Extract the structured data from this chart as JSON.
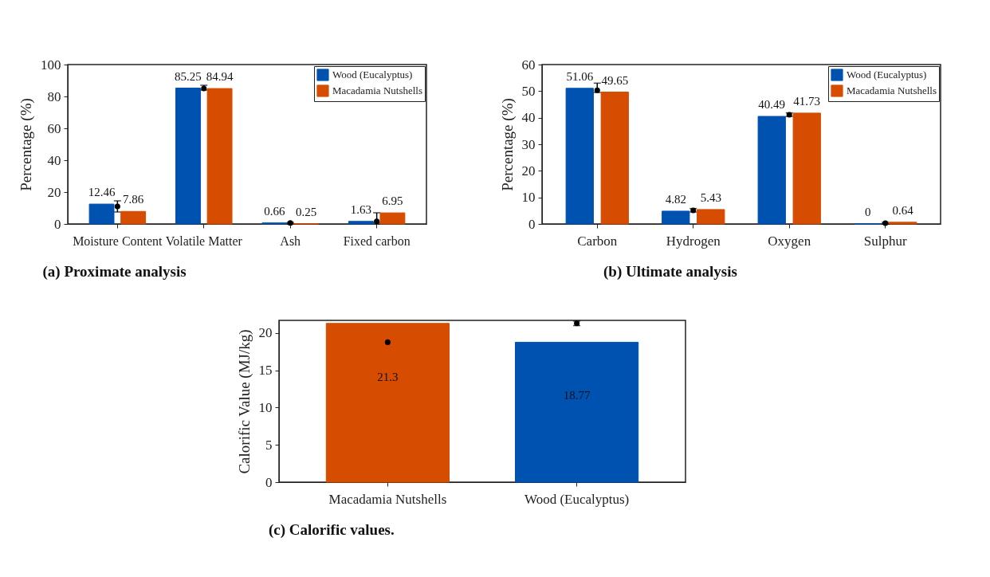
{
  "chart_data": [
    {
      "type": "bar",
      "title": "(a) Proximate analysis",
      "ylabel": "Percentage (%)",
      "categories": [
        "Moisture Content",
        "Volatile Matter",
        "Ash",
        "Fixed carbon"
      ],
      "series": [
        {
          "name": "Wood (Eucalyptus)",
          "color": "#0052b0",
          "values": [
            12.46,
            85.25,
            0.66,
            1.63
          ],
          "value_labels": [
            "12.46",
            "85.25",
            "0.66",
            "1.63"
          ]
        },
        {
          "name": "Macadamia Nutshells",
          "color": "#d64c00",
          "values": [
            7.86,
            84.94,
            0.25,
            6.95
          ],
          "value_labels": [
            "7.86",
            "84.94",
            "0.25",
            "6.95"
          ]
        },
        {
          "type": "scatter",
          "color": "#000000",
          "x": [
            "Moisture Content",
            "Volatile Matter",
            "Ash",
            "Fixed carbon"
          ],
          "values": [
            11,
            85,
            0.6,
            1.6
          ],
          "errors": [
            [
              7.5,
              14.5
            ],
            [
              84,
              87
            ],
            [
              0.2,
              1
            ],
            [
              1,
              7
            ]
          ]
        }
      ],
      "ylim": [
        0,
        100
      ],
      "yticks": [
        0,
        20,
        40,
        60,
        80,
        100
      ],
      "legend": "top right",
      "marker": "circle"
    },
    {
      "type": "bar",
      "title": "(b) Ultimate analysis",
      "ylabel": "Percentage (%)",
      "categories": [
        "Carbon",
        "Hydrogen",
        "Oxygen",
        "Sulphur"
      ],
      "series": [
        {
          "name": "Wood (Eucalyptus)",
          "color": "#0052b0",
          "values": [
            51.06,
            4.82,
            40.49,
            0
          ],
          "value_labels": [
            "51.06",
            "4.82",
            "40.49",
            "0"
          ]
        },
        {
          "name": "Macadamia Nutshells",
          "color": "#d64c00",
          "values": [
            49.65,
            5.43,
            41.73,
            0.64
          ],
          "value_labels": [
            "49.65",
            "5.43",
            "41.73",
            "0.64"
          ]
        },
        {
          "type": "scatter",
          "color": "#000000",
          "x": [
            "Carbon",
            "Hydrogen",
            "Oxygen",
            "Sulphur"
          ],
          "values": [
            50.3,
            5.1,
            41.1,
            0.3
          ],
          "errors": [
            [
              49.5,
              53
            ],
            [
              4.5,
              5.8
            ],
            [
              40.5,
              41.8
            ],
            [
              0,
              0.6
            ]
          ]
        }
      ],
      "ylim": [
        0,
        60
      ],
      "yticks": [
        0,
        10,
        20,
        30,
        40,
        50,
        60
      ],
      "legend": "top right",
      "marker": "circle"
    },
    {
      "type": "bar",
      "title": "(c) Calorific values.",
      "ylabel": "Calorific Value (MJ/kg)",
      "categories": [
        "Macadamia Nutshells",
        "Wood (Eucalyptus)"
      ],
      "series": [
        {
          "colors": [
            "#d64c00",
            "#0052b0"
          ],
          "values": [
            21.3,
            18.77
          ],
          "value_labels": [
            "21.3",
            "18.77"
          ]
        },
        {
          "type": "scatter",
          "color": "#000000",
          "x": [
            "Macadamia Nutshells",
            "Wood (Eucalyptus)"
          ],
          "values": [
            18.77,
            21.3
          ],
          "errors": [
            [
              18.6,
              18.95
            ],
            [
              21,
              21.6
            ]
          ]
        }
      ],
      "ylim": [
        0,
        21.7
      ],
      "yticks": [
        0,
        5,
        10,
        15,
        20
      ],
      "marker": "circle"
    }
  ]
}
